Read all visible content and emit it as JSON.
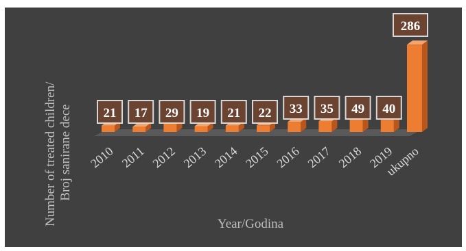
{
  "chart_data": {
    "type": "bar",
    "categories": [
      "2010",
      "2011",
      "2012",
      "2013",
      "2014",
      "2015",
      "2016",
      "2017",
      "2018",
      "2019",
      "ukupno"
    ],
    "values": [
      21,
      17,
      29,
      19,
      21,
      22,
      33,
      35,
      49,
      40,
      286
    ],
    "title": "",
    "xlabel": "Year/Godina",
    "ylabel_lines": [
      "Number of treated  children/",
      "Broj sanirane dece"
    ],
    "ylim": [
      0,
      300
    ],
    "grid": false,
    "legend": "none",
    "colors": {
      "background": "#404040",
      "bar_front": "#ed7d31",
      "bar_side": "#b8561c",
      "bar_top": "#f4a46c",
      "floor": "#595959",
      "label_box": "#6b4331",
      "label_border": "#d8d8d8",
      "label_text": "#ffffff",
      "axis_text": "#d9d9d9"
    }
  }
}
